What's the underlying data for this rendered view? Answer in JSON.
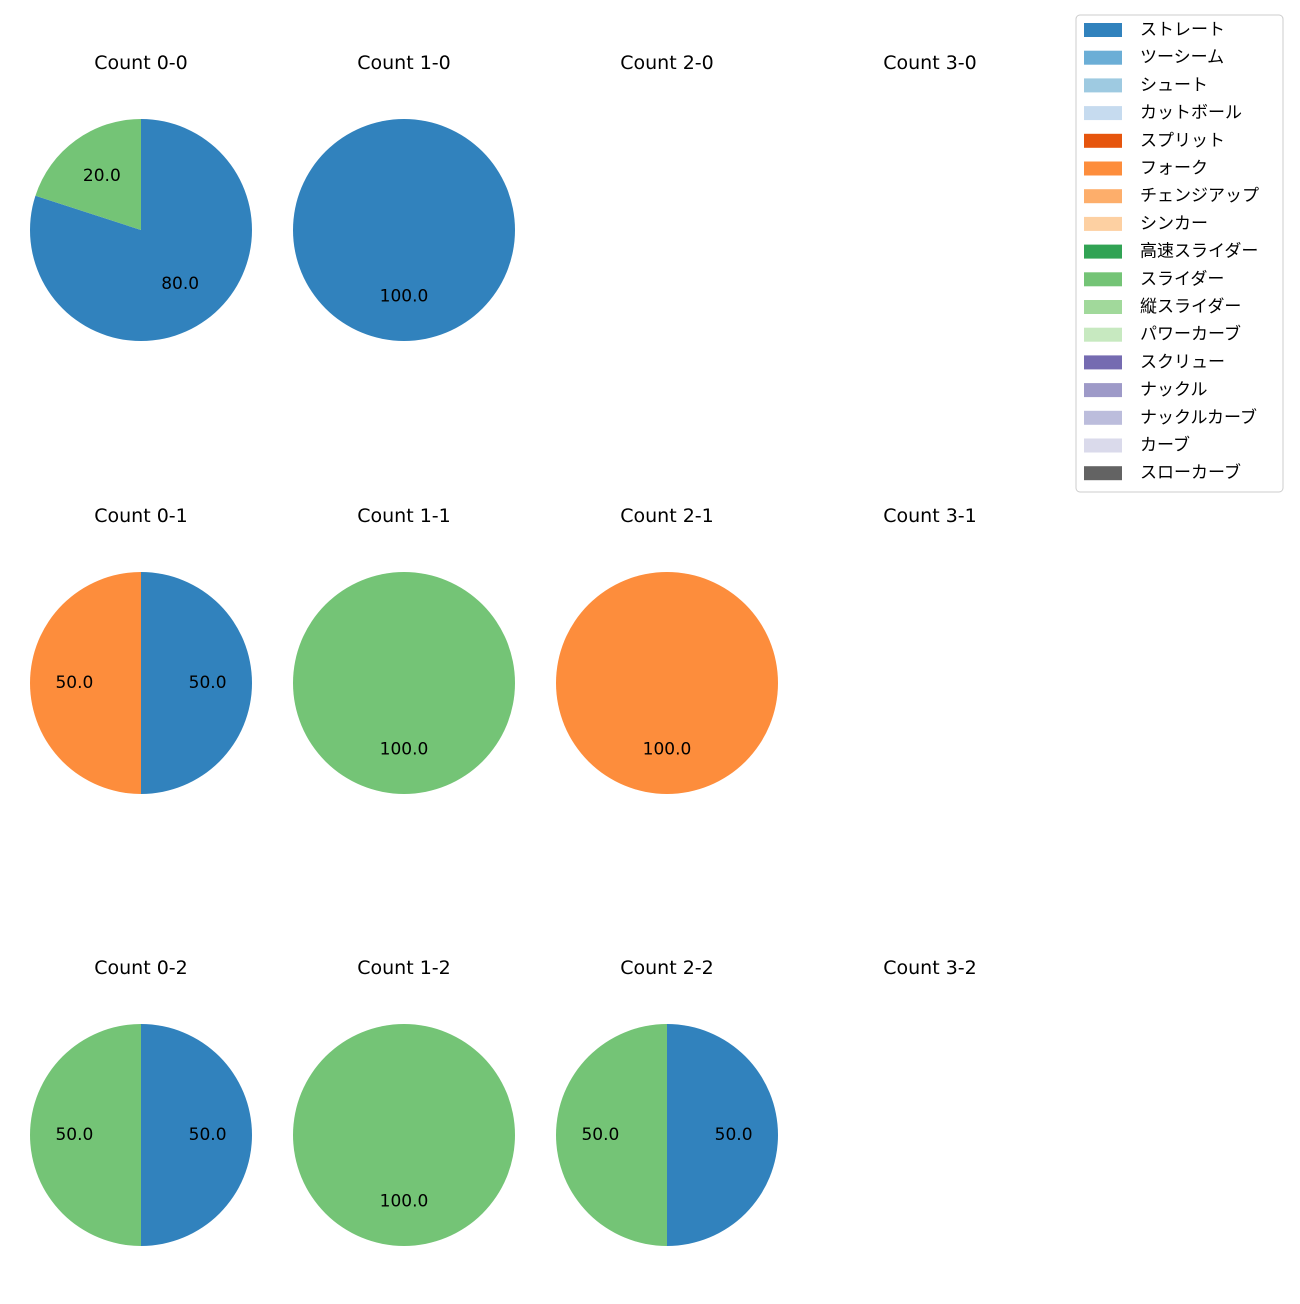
{
  "legend": {
    "placement": "top-right",
    "entries": [
      {
        "label": "ストレート",
        "color": "#3182bd"
      },
      {
        "label": "ツーシーム",
        "color": "#6baed6"
      },
      {
        "label": "シュート",
        "color": "#9ecae1"
      },
      {
        "label": "カットボール",
        "color": "#c6dbef"
      },
      {
        "label": "スプリット",
        "color": "#e6550d"
      },
      {
        "label": "フォーク",
        "color": "#fd8d3c"
      },
      {
        "label": "チェンジアップ",
        "color": "#fdae6b"
      },
      {
        "label": "シンカー",
        "color": "#fdd0a2"
      },
      {
        "label": "高速スライダー",
        "color": "#31a354"
      },
      {
        "label": "スライダー",
        "color": "#74c476"
      },
      {
        "label": "縦スライダー",
        "color": "#a1d99b"
      },
      {
        "label": "パワーカーブ",
        "color": "#c7e9c0"
      },
      {
        "label": "スクリュー",
        "color": "#756bb1"
      },
      {
        "label": "ナックル",
        "color": "#9e9ac8"
      },
      {
        "label": "ナックルカーブ",
        "color": "#bcbddc"
      },
      {
        "label": "カーブ",
        "color": "#dadaeb"
      },
      {
        "label": "スローカーブ",
        "color": "#636363"
      }
    ]
  },
  "chart_data": [
    {
      "type": "pie",
      "title": "Count 0-0",
      "slices": [
        {
          "label": "ストレート",
          "value": 80.0
        },
        {
          "label": "スライダー",
          "value": 20.0
        }
      ]
    },
    {
      "type": "pie",
      "title": "Count 1-0",
      "slices": [
        {
          "label": "ストレート",
          "value": 100.0
        }
      ]
    },
    {
      "type": "pie",
      "title": "Count 2-0",
      "slices": []
    },
    {
      "type": "pie",
      "title": "Count 3-0",
      "slices": []
    },
    {
      "type": "pie",
      "title": "Count 0-1",
      "slices": [
        {
          "label": "ストレート",
          "value": 50.0
        },
        {
          "label": "フォーク",
          "value": 50.0
        }
      ]
    },
    {
      "type": "pie",
      "title": "Count 1-1",
      "slices": [
        {
          "label": "スライダー",
          "value": 100.0
        }
      ]
    },
    {
      "type": "pie",
      "title": "Count 2-1",
      "slices": [
        {
          "label": "フォーク",
          "value": 100.0
        }
      ]
    },
    {
      "type": "pie",
      "title": "Count 3-1",
      "slices": []
    },
    {
      "type": "pie",
      "title": "Count 0-2",
      "slices": [
        {
          "label": "ストレート",
          "value": 50.0
        },
        {
          "label": "スライダー",
          "value": 50.0
        }
      ]
    },
    {
      "type": "pie",
      "title": "Count 1-2",
      "slices": [
        {
          "label": "スライダー",
          "value": 100.0
        }
      ]
    },
    {
      "type": "pie",
      "title": "Count 2-2",
      "slices": [
        {
          "label": "ストレート",
          "value": 50.0
        },
        {
          "label": "スライダー",
          "value": 50.0
        }
      ]
    },
    {
      "type": "pie",
      "title": "Count 3-2",
      "slices": []
    }
  ]
}
